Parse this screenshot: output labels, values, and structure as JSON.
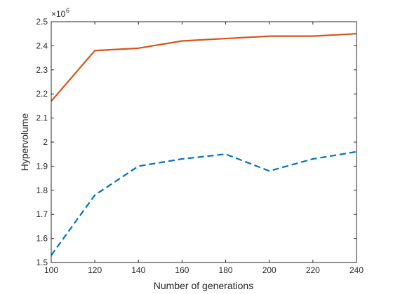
{
  "chart_data": {
    "type": "line",
    "title": "",
    "xlabel": "Number of generations",
    "ylabel": "Hypervolume",
    "y_multiplier": {
      "base": "×10",
      "exponent": "6"
    },
    "x": [
      100,
      120,
      140,
      160,
      180,
      200,
      220,
      240
    ],
    "xlim": [
      100,
      240
    ],
    "ylim": [
      1.5,
      2.5
    ],
    "x_ticks": [
      "100",
      "120",
      "140",
      "160",
      "180",
      "200",
      "220",
      "240"
    ],
    "y_ticks": [
      "1.5",
      "1.6",
      "1.7",
      "1.8",
      "1.9",
      "2",
      "2.1",
      "2.2",
      "2.3",
      "2.4",
      "2.5"
    ],
    "grid": false,
    "legend": null,
    "series": [
      {
        "values": [
          2.17,
          2.38,
          2.39,
          2.42,
          2.43,
          2.44,
          2.44,
          2.45
        ],
        "color": "#D95319",
        "style": "solid"
      },
      {
        "values": [
          1.53,
          1.78,
          1.9,
          1.93,
          1.95,
          1.88,
          1.93,
          1.96
        ],
        "color": "#0072BD",
        "style": "dashed"
      }
    ]
  }
}
